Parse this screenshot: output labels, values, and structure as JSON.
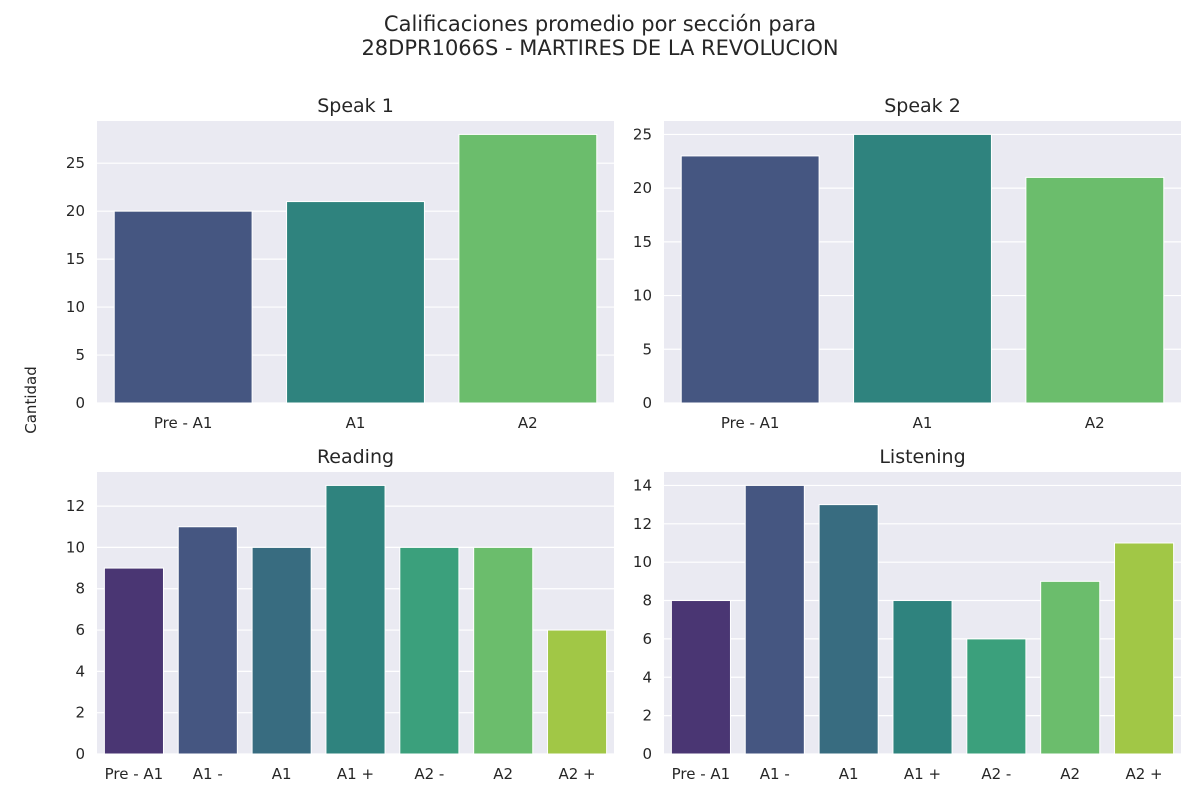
{
  "figure": {
    "title_line1": "Calificaciones promedio por sección para",
    "title_line2": "28DPR1066S - MARTIRES DE LA REVOLUCION",
    "ylabel": "Cantidad"
  },
  "chart_data": [
    {
      "type": "bar",
      "title": "Speak 1",
      "categories": [
        "Pre - A1",
        "A1",
        "A2"
      ],
      "values": [
        20,
        21,
        28
      ],
      "colors": [
        "#455681",
        "#2f837e",
        "#6bbd6c"
      ],
      "ylim": [
        0,
        29.4
      ],
      "yticks": [
        0,
        5,
        10,
        15,
        20,
        25
      ],
      "grid": true
    },
    {
      "type": "bar",
      "title": "Speak 2",
      "categories": [
        "Pre - A1",
        "A1",
        "A2"
      ],
      "values": [
        23,
        25,
        21
      ],
      "colors": [
        "#455681",
        "#2f837e",
        "#6bbd6c"
      ],
      "ylim": [
        0,
        26.25
      ],
      "yticks": [
        0,
        5,
        10,
        15,
        20,
        25
      ],
      "grid": true
    },
    {
      "type": "bar",
      "title": "Reading",
      "categories": [
        "Pre - A1",
        "A1 -",
        "A1",
        "A1 +",
        "A2 -",
        "A2",
        "A2 +"
      ],
      "values": [
        9,
        11,
        10,
        13,
        10,
        10,
        6
      ],
      "colors": [
        "#4a3673",
        "#455681",
        "#386c80",
        "#2f837e",
        "#3ba07c",
        "#6bbd6c",
        "#a1c746"
      ],
      "ylim": [
        0,
        13.65
      ],
      "yticks": [
        0,
        2,
        4,
        6,
        8,
        10,
        12
      ],
      "grid": true
    },
    {
      "type": "bar",
      "title": "Listening",
      "categories": [
        "Pre - A1",
        "A1 -",
        "A1",
        "A1 +",
        "A2 -",
        "A2",
        "A2 +"
      ],
      "values": [
        8,
        14,
        13,
        8,
        6,
        9,
        11
      ],
      "colors": [
        "#4a3673",
        "#455681",
        "#386c80",
        "#2f837e",
        "#3ba07c",
        "#6bbd6c",
        "#a1c746"
      ],
      "ylim": [
        0,
        14.7
      ],
      "yticks": [
        0,
        2,
        4,
        6,
        8,
        10,
        12,
        14
      ],
      "grid": true
    }
  ]
}
